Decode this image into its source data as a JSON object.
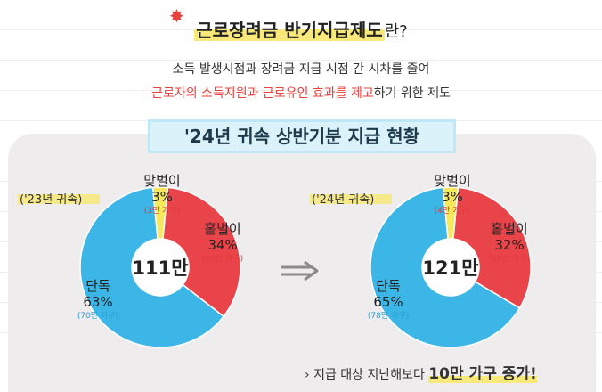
{
  "header": {
    "title_highlight": "근로장려금 반기지급제도",
    "title_suffix": "란?",
    "subtitle_line1": "소득 발생시점과 장려금 지급 시점 간 시차를 줄여",
    "subtitle_line2_red": "근로자의 소득지원과 근로유인 효과를 제고",
    "subtitle_line2_rest": "하기 위한 제도"
  },
  "banner": {
    "text": "'24년 귀속 상반기분 지급 현황"
  },
  "colors": {
    "double": "#f6e75e",
    "single_income": "#e9444a",
    "single": "#3bb6e6",
    "center": "#ffffff"
  },
  "chart_data": [
    {
      "type": "pie",
      "year_label": "('23년 귀속)",
      "center_label": "111만",
      "slices": [
        {
          "name": "맞벌이",
          "percent": 3,
          "percent_label": "3%",
          "households": "(3만 가구)"
        },
        {
          "name": "홑벌이",
          "percent": 34,
          "percent_label": "34%",
          "households": "(38만 가구)"
        },
        {
          "name": "단독",
          "percent": 63,
          "percent_label": "63%",
          "households": "(70만 가구)"
        }
      ]
    },
    {
      "type": "pie",
      "year_label": "('24년 귀속)",
      "center_label": "121만",
      "slices": [
        {
          "name": "맞벌이",
          "percent": 3,
          "percent_label": "3%",
          "households": "(4만 가구)"
        },
        {
          "name": "홑벌이",
          "percent": 32,
          "percent_label": "32%",
          "households": "(39만 가구)"
        },
        {
          "name": "단독",
          "percent": 65,
          "percent_label": "65%",
          "households": "(78만 가구)"
        }
      ]
    }
  ],
  "footer": {
    "bullet": "›",
    "text_prefix": "지급 대상 지난해보다",
    "text_highlight": "10만 가구 증가!"
  }
}
